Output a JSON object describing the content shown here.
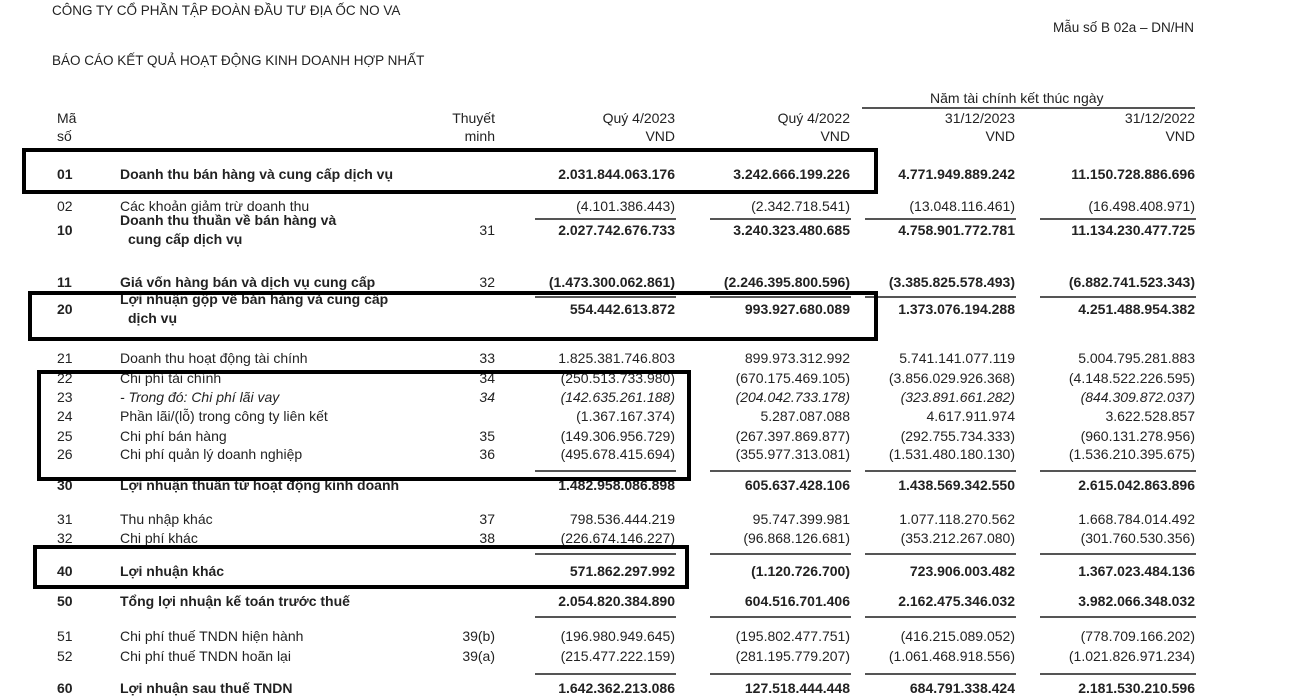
{
  "header": {
    "company": "CÔNG TY CỔ PHẦN TẬP ĐOÀN ĐẦU TƯ ĐỊA ỐC NO VA",
    "form_number": "Mẫu số B 02a – DN/HN",
    "report_title": "BÁO CÁO KẾT QUẢ HOẠT ĐỘNG KINH DOANH HỢP NHẤT"
  },
  "columns": {
    "fiscal_year_group": "Năm tài chính kết thúc ngày",
    "code": [
      "Mã",
      "số"
    ],
    "note": [
      "Thuyết",
      "minh"
    ],
    "q4_2023": [
      "Quý 4/2023",
      "VND"
    ],
    "q4_2022": [
      "Quý 4/2022",
      "VND"
    ],
    "fy_2023": [
      "31/12/2023",
      "VND"
    ],
    "fy_2022": [
      "31/12/2022",
      "VND"
    ]
  },
  "rows": [
    {
      "code": "01",
      "desc": [
        "Doanh thu bán hàng và cung cấp dịch vụ"
      ],
      "note": "",
      "v": [
        "2.031.844.063.176",
        "3.242.666.199.226",
        "4.771.949.889.242",
        "11.150.728.886.696"
      ],
      "bold": true
    },
    {
      "code": "02",
      "desc": [
        "Các khoản giảm trừ doanh thu"
      ],
      "note": "",
      "v": [
        "(4.101.386.443)",
        "(2.342.718.541)",
        "(13.048.116.461)",
        "(16.498.408.971)"
      ]
    },
    {
      "code": "10",
      "desc": [
        "Doanh thu thuần về bán hàng và",
        "cung cấp dịch vụ"
      ],
      "note": "31",
      "v": [
        "2.027.742.676.733",
        "3.240.323.480.685",
        "4.758.901.772.781",
        "11.134.230.477.725"
      ],
      "bold": true
    },
    {
      "code": "11",
      "desc": [
        "Giá vốn hàng bán và dịch vụ cung cấp"
      ],
      "note": "32",
      "v": [
        "(1.473.300.062.861)",
        "(2.246.395.800.596)",
        "(3.385.825.578.493)",
        "(6.882.741.523.343)"
      ],
      "bold": true
    },
    {
      "code": "20",
      "desc": [
        "Lợi nhuận gộp về bán hàng và cung cấp",
        "dịch vụ"
      ],
      "note": "",
      "v": [
        "554.442.613.872",
        "993.927.680.089",
        "1.373.076.194.288",
        "4.251.488.954.382"
      ],
      "bold": true
    },
    {
      "code": "21",
      "desc": [
        "Doanh thu hoạt động tài chính"
      ],
      "note": "33",
      "v": [
        "1.825.381.746.803",
        "899.973.312.992",
        "5.741.141.077.119",
        "5.004.795.281.883"
      ]
    },
    {
      "code": "22",
      "desc": [
        "Chi phí tài chính"
      ],
      "note": "34",
      "v": [
        "(250.513.733.980)",
        "(670.175.469.105)",
        "(3.856.029.926.368)",
        "(4.148.522.226.595)"
      ]
    },
    {
      "code": "23",
      "desc": [
        "- Trong đó: Chi phí lãi vay"
      ],
      "note": "34",
      "v": [
        "(142.635.261.188)",
        "(204.042.733.178)",
        "(323.891.661.282)",
        "(844.309.872.037)"
      ],
      "italic": true
    },
    {
      "code": "24",
      "desc": [
        "Phần lãi/(lỗ) trong công ty liên kết"
      ],
      "note": "",
      "v": [
        "(1.367.167.374)",
        "5.287.087.088",
        "4.617.911.974",
        "3.622.528.857"
      ]
    },
    {
      "code": "25",
      "desc": [
        "Chi phí bán hàng"
      ],
      "note": "35",
      "v": [
        "(149.306.956.729)",
        "(267.397.869.877)",
        "(292.755.734.333)",
        "(960.131.278.956)"
      ]
    },
    {
      "code": "26",
      "desc": [
        "Chi phí quản lý doanh nghiệp"
      ],
      "note": "36",
      "v": [
        "(495.678.415.694)",
        "(355.977.313.081)",
        "(1.531.480.180.130)",
        "(1.536.210.395.675)"
      ]
    },
    {
      "code": "30",
      "desc": [
        "Lợi nhuận thuần từ hoạt động kinh doanh"
      ],
      "note": "",
      "v": [
        "1.482.958.086.898",
        "605.637.428.106",
        "1.438.569.342.550",
        "2.615.042.863.896"
      ],
      "bold": true
    },
    {
      "code": "31",
      "desc": [
        "Thu nhập khác"
      ],
      "note": "37",
      "v": [
        "798.536.444.219",
        "95.747.399.981",
        "1.077.118.270.562",
        "1.668.784.014.492"
      ]
    },
    {
      "code": "32",
      "desc": [
        "Chi phí khác"
      ],
      "note": "38",
      "v": [
        "(226.674.146.227)",
        "(96.868.126.681)",
        "(353.212.267.080)",
        "(301.760.530.356)"
      ]
    },
    {
      "code": "40",
      "desc": [
        "Lợi nhuận khác"
      ],
      "note": "",
      "v": [
        "571.862.297.992",
        "(1.120.726.700)",
        "723.906.003.482",
        "1.367.023.484.136"
      ],
      "bold": true
    },
    {
      "code": "50",
      "desc": [
        "Tổng lợi nhuận kế toán trước thuế"
      ],
      "note": "",
      "v": [
        "2.054.820.384.890",
        "604.516.701.406",
        "2.162.475.346.032",
        "3.982.066.348.032"
      ],
      "bold": true
    },
    {
      "code": "51",
      "desc": [
        "Chi phí thuế TNDN hiện hành"
      ],
      "note": "39(b)",
      "v": [
        "(196.980.949.645)",
        "(195.802.477.751)",
        "(416.215.089.052)",
        "(778.709.166.202)"
      ]
    },
    {
      "code": "52",
      "desc": [
        "Chi phí thuế TNDN hoãn lại"
      ],
      "note": "39(a)",
      "v": [
        "(215.477.222.159)",
        "(281.195.779.207)",
        "(1.061.468.918.556)",
        "(1.021.826.971.234)"
      ]
    },
    {
      "code": "60",
      "desc": [
        "Lợi nhuận sau thuế TNDN"
      ],
      "note": "",
      "v": [
        "1.642.362.213.086",
        "127.518.444.448",
        "684.791.338.424",
        "2.181.530.210.596"
      ],
      "bold": true
    }
  ]
}
